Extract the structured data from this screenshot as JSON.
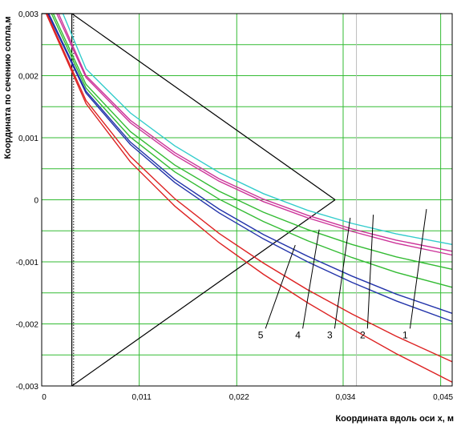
{
  "chart_data": {
    "type": "line",
    "title": "",
    "xlabel": "Координата вдоль оси x, м",
    "ylabel": "Координата по сечению сопла,м",
    "xlim": [
      0,
      0.0463
    ],
    "ylim": [
      -0.003,
      0.003
    ],
    "x_ticks": [
      {
        "value": 0,
        "label": "0"
      },
      {
        "value": 0.011,
        "label": "0,011"
      },
      {
        "value": 0.022,
        "label": "0,022"
      },
      {
        "value": 0.034,
        "label": "0,034"
      },
      {
        "value": 0.045,
        "label": "0,045"
      }
    ],
    "y_ticks": [
      {
        "value": 0.003,
        "label": "0,003"
      },
      {
        "value": 0.002,
        "label": "0,002"
      },
      {
        "value": 0.001,
        "label": "0,001"
      },
      {
        "value": 0,
        "label": "0"
      },
      {
        "value": -0.001,
        "label": "-0,001"
      },
      {
        "value": -0.002,
        "label": "-0,002"
      },
      {
        "value": -0.003,
        "label": "-0,003"
      }
    ],
    "grid": true,
    "grid_color": "#33bb33",
    "series": [
      {
        "name": "",
        "color": "#33cccc",
        "x": [
          0.0024,
          0.005,
          0.01,
          0.015,
          0.02,
          0.025,
          0.03,
          0.035,
          0.04,
          0.0463
        ],
        "y": [
          0.003,
          0.00211,
          0.0014,
          0.00087,
          0.00044,
          0.0001,
          -0.00017,
          -0.00038,
          -0.00055,
          -0.00072
        ]
      },
      {
        "name": "",
        "color": "#cc3399",
        "x": [
          0.0019,
          0.005,
          0.01,
          0.015,
          0.02,
          0.025,
          0.03,
          0.035,
          0.04,
          0.0463
        ],
        "y": [
          0.003,
          0.002,
          0.00128,
          0.00076,
          0.00034,
          1e-05,
          -0.00025,
          -0.00047,
          -0.00065,
          -0.00083
        ]
      },
      {
        "name": "",
        "color": "#cc3399",
        "x": [
          0.0017,
          0.005,
          0.01,
          0.015,
          0.02,
          0.025,
          0.03,
          0.035,
          0.04,
          0.0463
        ],
        "y": [
          0.003,
          0.00197,
          0.00124,
          0.00072,
          0.0003,
          -3e-05,
          -0.00029,
          -0.00051,
          -0.0007,
          -0.00089
        ]
      },
      {
        "name": "",
        "color": "#33bb33",
        "x": [
          0.0013,
          0.005,
          0.01,
          0.015,
          0.02,
          0.025,
          0.03,
          0.035,
          0.04,
          0.0463
        ],
        "y": [
          0.003,
          0.00186,
          0.0011,
          0.00056,
          0.00014,
          -0.0002,
          -0.00048,
          -0.00072,
          -0.00092,
          -0.00112
        ]
      },
      {
        "name": "",
        "color": "#33bb33",
        "x": [
          0.0011,
          0.005,
          0.01,
          0.015,
          0.02,
          0.025,
          0.03,
          0.035,
          0.04,
          0.0463
        ],
        "y": [
          0.003,
          0.0018,
          0.00101,
          0.00045,
          1e-05,
          -0.00035,
          -0.00066,
          -0.00093,
          -0.00117,
          -0.00141
        ]
      },
      {
        "name": "",
        "color": "#2233aa",
        "x": [
          0.0008,
          0.005,
          0.01,
          0.015,
          0.02,
          0.025,
          0.03,
          0.035,
          0.04,
          0.0463
        ],
        "y": [
          0.003,
          0.00175,
          0.00093,
          0.00033,
          -0.00015,
          -0.00056,
          -0.00091,
          -0.00123,
          -0.00152,
          -0.00183
        ]
      },
      {
        "name": "",
        "color": "#2233aa",
        "x": [
          0.0007,
          0.005,
          0.01,
          0.015,
          0.02,
          0.025,
          0.03,
          0.035,
          0.04,
          0.0463
        ],
        "y": [
          0.003,
          0.00172,
          0.00089,
          0.00028,
          -0.00021,
          -0.00063,
          -0.001,
          -0.00133,
          -0.00163,
          -0.00196
        ]
      },
      {
        "name": "",
        "color": "#dd2222",
        "x": [
          0.0006,
          0.005,
          0.01,
          0.015,
          0.02,
          0.025,
          0.03,
          0.035,
          0.04,
          0.0463
        ],
        "y": [
          0.003,
          0.0016,
          0.0007,
          2e-05,
          -0.00054,
          -0.00102,
          -0.00145,
          -0.00184,
          -0.0022,
          -0.00261
        ]
      },
      {
        "name": "",
        "color": "#dd2222",
        "x": [
          0.0005,
          0.005,
          0.01,
          0.015,
          0.02,
          0.025,
          0.03,
          0.035,
          0.04,
          0.0463
        ],
        "y": [
          0.003,
          0.00155,
          0.00061,
          -0.0001,
          -0.00069,
          -0.0012,
          -0.00166,
          -0.00208,
          -0.00248,
          -0.00294
        ]
      }
    ],
    "overlay_lines": [
      {
        "kind": "line",
        "x": [
          0,
          0.0034
        ],
        "y": [
          0.003,
          0.003
        ]
      },
      {
        "kind": "line",
        "x": [
          0.0034,
          0.0034
        ],
        "y": [
          0.003,
          -0.003
        ]
      },
      {
        "kind": "line",
        "x": [
          0.0034,
          0.0331
        ],
        "y": [
          0.003,
          0.0
        ]
      },
      {
        "kind": "line",
        "x": [
          0.0331,
          0.0034
        ],
        "y": [
          0.0,
          -0.003
        ]
      },
      {
        "kind": "dotted",
        "x": [
          0.0036,
          0.0036
        ],
        "y": [
          0.003,
          -0.003
        ]
      },
      {
        "kind": "thin",
        "x": [
          0.0355,
          0.0355
        ],
        "y": [
          0.003,
          -0.003
        ]
      }
    ],
    "annotations": [
      {
        "label": "1",
        "text_at": [
          0.041,
          -0.00223
        ],
        "arrow_to": [
          0.0434,
          -0.00015
        ]
      },
      {
        "label": "2",
        "text_at": [
          0.0362,
          -0.00223
        ],
        "arrow_to": [
          0.0374,
          -0.00024
        ]
      },
      {
        "label": "3",
        "text_at": [
          0.0325,
          -0.00223
        ],
        "arrow_to": [
          0.0348,
          -0.00029
        ]
      },
      {
        "label": "4",
        "text_at": [
          0.0289,
          -0.00223
        ],
        "arrow_to": [
          0.0313,
          -0.00048
        ]
      },
      {
        "label": "5",
        "text_at": [
          0.0247,
          -0.00223
        ],
        "arrow_to": [
          0.0286,
          -0.00073
        ]
      }
    ]
  }
}
